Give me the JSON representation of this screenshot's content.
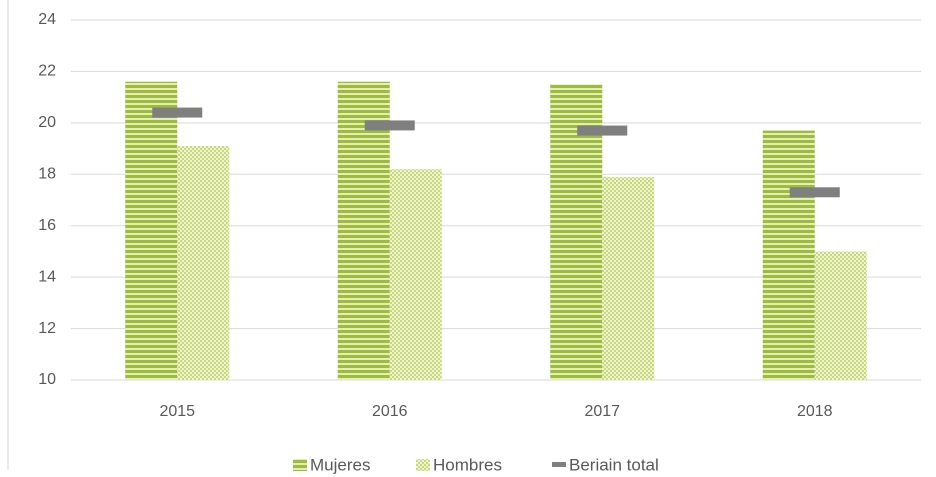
{
  "chart_data": {
    "type": "bar",
    "categories": [
      "2015",
      "2016",
      "2017",
      "2018"
    ],
    "series": [
      {
        "name": "Mujeres",
        "color": "#9dbb3c",
        "values": [
          21.6,
          21.6,
          21.5,
          19.7
        ]
      },
      {
        "name": "Hombres",
        "color": "#c8d87a",
        "values": [
          19.1,
          18.2,
          17.9,
          15.0
        ]
      },
      {
        "name": "Beriain total",
        "color": "#7f7f7f",
        "marker": "dash",
        "values": [
          20.4,
          19.9,
          19.7,
          17.3
        ]
      }
    ],
    "ylim": [
      10,
      24
    ],
    "yticks": [
      10,
      12,
      14,
      16,
      18,
      20,
      22,
      24
    ],
    "grid": true,
    "legend": "bottom"
  }
}
